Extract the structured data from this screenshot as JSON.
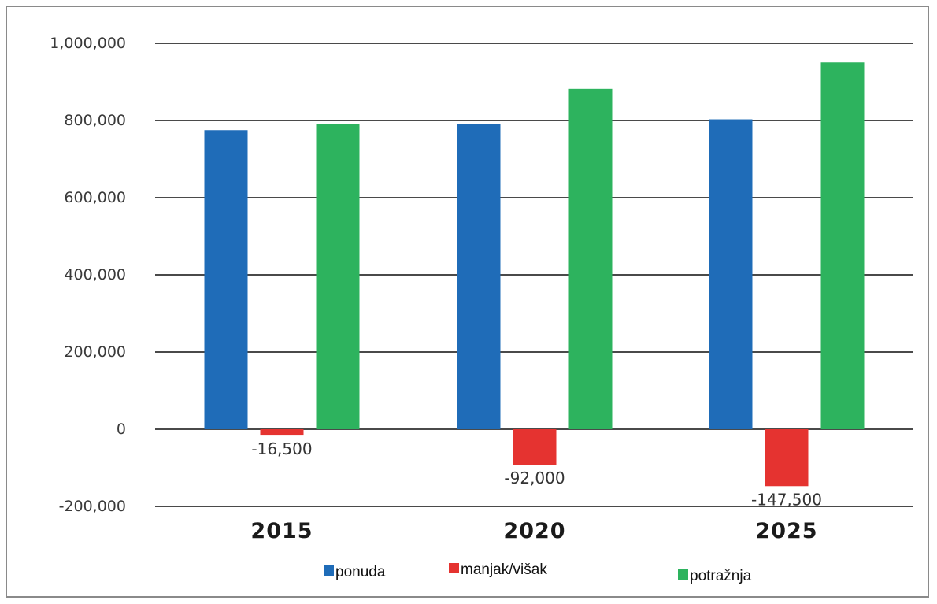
{
  "chart_data": {
    "type": "bar",
    "categories": [
      "2015",
      "2020",
      "2025"
    ],
    "series": [
      {
        "name": "ponuda",
        "color": "#1f6cb8",
        "values": [
          775000,
          790000,
          803000
        ]
      },
      {
        "name": "manjak/višak",
        "color": "#e53330",
        "values": [
          -16500,
          -92000,
          -147500
        ]
      },
      {
        "name": "potražnja",
        "color": "#2db35e",
        "values": [
          791500,
          882000,
          950500
        ]
      }
    ],
    "data_labels": [
      {
        "category": "2015",
        "series": "manjak/višak",
        "text": "-16,500"
      },
      {
        "category": "2020",
        "series": "manjak/višak",
        "text": "-92,000"
      },
      {
        "category": "2025",
        "series": "manjak/višak",
        "text": "-147,500"
      }
    ],
    "y_ticks": [
      "-200,000",
      "0",
      "200,000",
      "400,000",
      "600,000",
      "800,000",
      "1,000,000"
    ],
    "ylim": [
      -200000,
      1000000
    ],
    "grid": true,
    "legend": "bottom",
    "title": "",
    "xlabel": "",
    "ylabel": ""
  }
}
